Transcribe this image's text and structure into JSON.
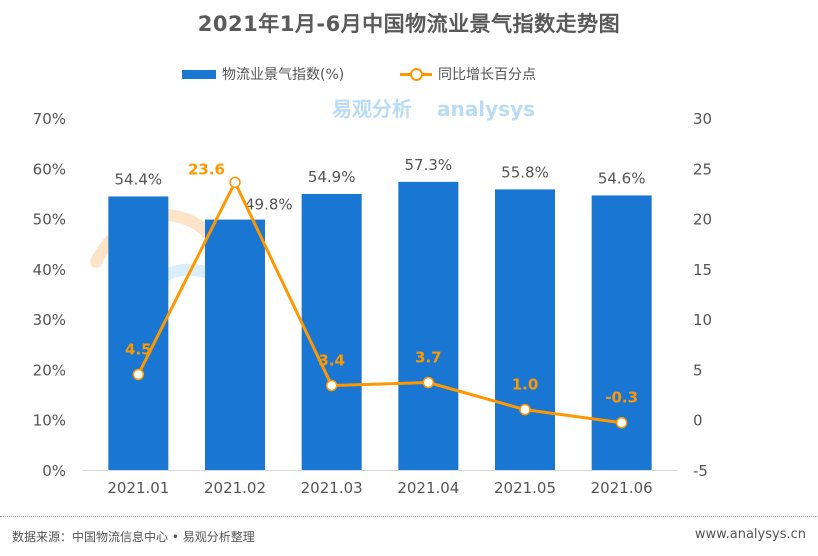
{
  "chart_data": {
    "type": "bar+line",
    "title": "2021年1月-6月中国物流业景气指数走势图",
    "categories": [
      "2021.01",
      "2021.02",
      "2021.03",
      "2021.04",
      "2021.05",
      "2021.06"
    ],
    "series": [
      {
        "name": "物流业景气指数(%)",
        "type": "bar",
        "axis": "left",
        "values": [
          54.4,
          49.8,
          54.9,
          57.3,
          55.8,
          54.6
        ],
        "labels": [
          "54.4%",
          "49.8%",
          "54.9%",
          "57.3%",
          "55.8%",
          "54.6%"
        ],
        "color": "#1976d2"
      },
      {
        "name": "同比增长百分点",
        "type": "line",
        "axis": "right",
        "values": [
          4.5,
          23.6,
          3.4,
          3.7,
          1.0,
          -0.3
        ],
        "labels": [
          "4.5",
          "23.6",
          "3.4",
          "3.7",
          "1.0",
          "-0.3"
        ],
        "color": "#ff9800"
      }
    ],
    "left_axis": {
      "ylim": [
        0,
        70
      ],
      "ticks": [
        "0%",
        "10%",
        "20%",
        "30%",
        "40%",
        "50%",
        "60%",
        "70%"
      ],
      "tick_values": [
        0,
        10,
        20,
        30,
        40,
        50,
        60,
        70
      ]
    },
    "right_axis": {
      "ylim": [
        -5,
        30
      ],
      "ticks": [
        "-5",
        "0",
        "5",
        "10",
        "15",
        "20",
        "25",
        "30"
      ],
      "tick_values": [
        -5,
        0,
        5,
        10,
        15,
        20,
        25,
        30
      ]
    },
    "xlabel": "",
    "ylabel": "",
    "grid": false,
    "legend_position": "top-center"
  },
  "legend": {
    "items": [
      {
        "label": "物流业景气指数(%)",
        "color": "#1976d2",
        "kind": "bar"
      },
      {
        "label": "同比增长百分点",
        "color": "#ff9800",
        "kind": "line-marker"
      }
    ]
  },
  "footer": {
    "source": "数据来源：中国物流信息中心 • 易观分析整理",
    "url": "www.analysys.cn"
  },
  "watermark": {
    "text_en": "analysys",
    "text_cn": "易观分析"
  }
}
